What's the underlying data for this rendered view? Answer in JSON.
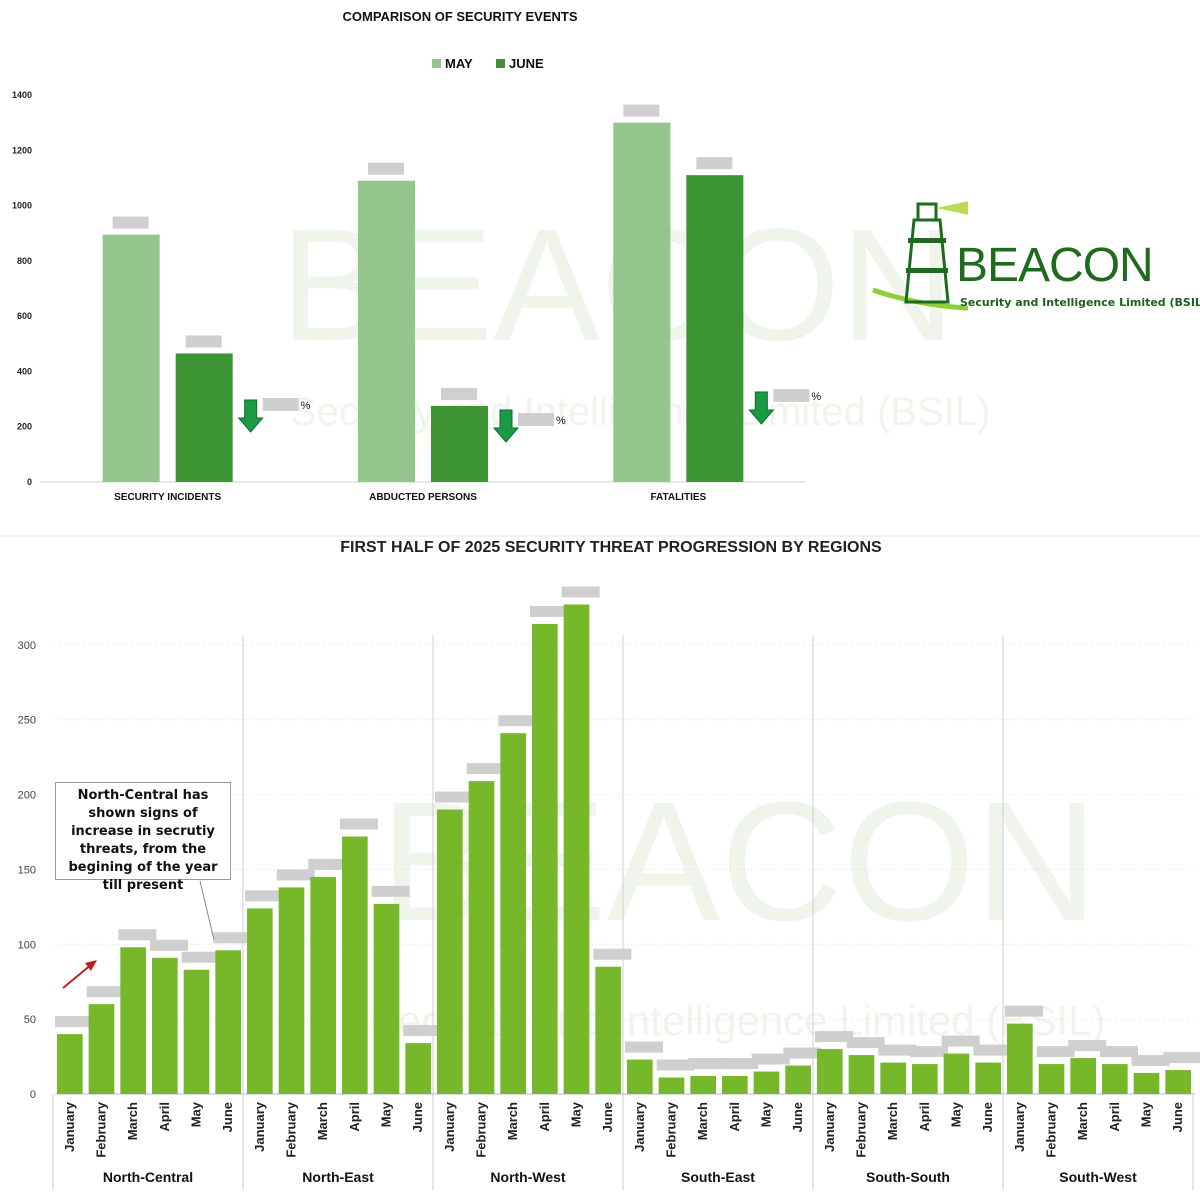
{
  "chart_data": [
    {
      "type": "bar",
      "title": "COMPARISON OF SECURITY EVENTS",
      "categories": [
        "SECURITY INCIDENTS",
        "ABDUCTED PERSONS",
        "FATALITIES"
      ],
      "series": [
        {
          "name": "MAY",
          "values": [
            895,
            1090,
            1300
          ],
          "color": "#93c58c"
        },
        {
          "name": "JUNE",
          "values": [
            465,
            275,
            1110
          ],
          "color": "#3d9432"
        }
      ],
      "ylim": [
        0,
        1400
      ],
      "yticks": [
        0,
        200,
        400,
        600,
        800,
        1000,
        1200,
        1400
      ],
      "legend": "top-center",
      "change_suffix": "%",
      "trend": "down",
      "grid": false
    },
    {
      "type": "bar",
      "title": "FIRST HALF OF 2025 SECURITY THREAT PROGRESSION BY REGIONS",
      "months": [
        "January",
        "February",
        "March",
        "April",
        "May",
        "June"
      ],
      "groups": [
        {
          "name": "North-Central",
          "values": [
            40,
            60,
            98,
            91,
            83,
            96
          ]
        },
        {
          "name": "North-East",
          "values": [
            124,
            138,
            145,
            172,
            127,
            34
          ]
        },
        {
          "name": "North-West",
          "values": [
            190,
            209,
            241,
            314,
            327,
            85
          ]
        },
        {
          "name": "South-East",
          "values": [
            23,
            11,
            12,
            12,
            15,
            19
          ]
        },
        {
          "name": "South-South",
          "values": [
            30,
            26,
            21,
            20,
            27,
            21
          ]
        },
        {
          "name": "South-West",
          "values": [
            47,
            20,
            24,
            20,
            14,
            16
          ]
        }
      ],
      "ylim": [
        0,
        340
      ],
      "yticks": [
        0,
        50,
        100,
        150,
        200,
        250,
        300
      ],
      "bar_color": "#77b82a",
      "grid": true,
      "annotation": "North-Central has shown signs of increase in secrutiy threats, from the begining of the year till present"
    }
  ],
  "logo": {
    "name": "BEACON",
    "tagline": "Security and Intelligence Limited (BSIL)"
  },
  "colors": {
    "accent": "#3d9432",
    "light": "#93c58c",
    "arrow": "#1a9a45",
    "annotation_arrow": "#c02020"
  }
}
